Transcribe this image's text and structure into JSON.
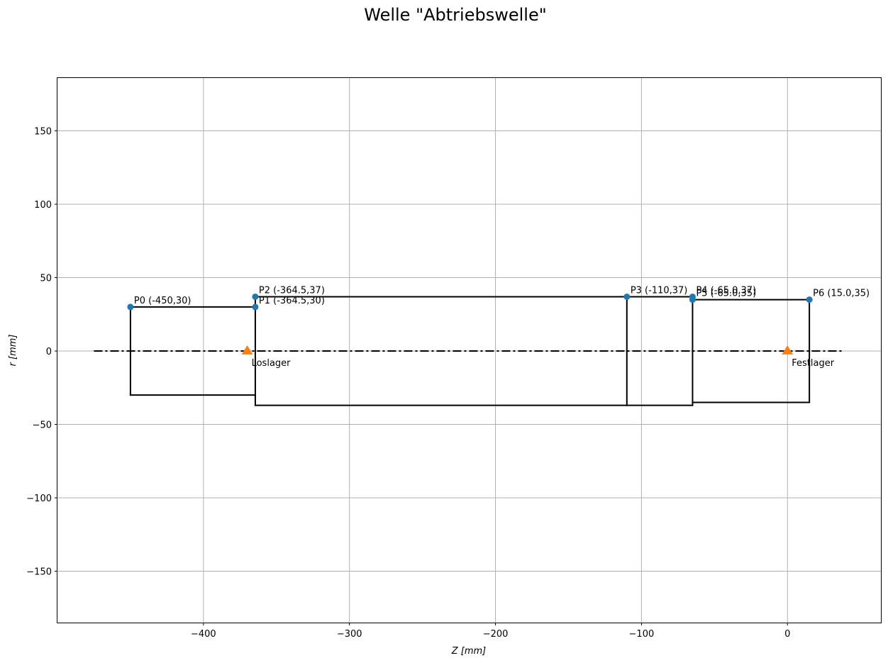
{
  "chart_data": {
    "type": "line",
    "title": "Welle \"Abtriebswelle\"",
    "xlabel": "Z [mm]",
    "ylabel": "r [mm]",
    "xlim": [
      -500,
      64
    ],
    "ylim": [
      -185,
      186
    ],
    "x_ticks": [
      -400,
      -300,
      -200,
      -100,
      0
    ],
    "y_ticks": [
      -150,
      -100,
      -50,
      0,
      50,
      100,
      150
    ],
    "x_tick_labels": [
      "−400",
      "−300",
      "−200",
      "−100",
      "0"
    ],
    "y_tick_labels": [
      "−150",
      "−100",
      "−50",
      "0",
      "50",
      "100",
      "150"
    ],
    "grid": true,
    "colors": {
      "outline": "#000000",
      "points": "#1f77b4",
      "bearings": "#ff7f0e",
      "grid": "#b0b0b0"
    },
    "centerline": {
      "x": [
        -475,
        38
      ],
      "y": 0,
      "style": "dash-dot"
    },
    "outline_segments": [
      [
        [
          -450,
          30
        ],
        [
          -450,
          -30
        ]
      ],
      [
        [
          -450,
          30
        ],
        [
          -364.5,
          30
        ]
      ],
      [
        [
          -450,
          -30
        ],
        [
          -364.5,
          -30
        ]
      ],
      [
        [
          -364.5,
          37
        ],
        [
          -364.5,
          -37
        ]
      ],
      [
        [
          -364.5,
          37
        ],
        [
          -110,
          37
        ]
      ],
      [
        [
          -364.5,
          -37
        ],
        [
          -110,
          -37
        ]
      ],
      [
        [
          -110,
          37
        ],
        [
          -110,
          -37
        ]
      ],
      [
        [
          -110,
          37
        ],
        [
          -65,
          37
        ]
      ],
      [
        [
          -110,
          -37
        ],
        [
          -65,
          -37
        ]
      ],
      [
        [
          -65,
          37
        ],
        [
          -65,
          -37
        ]
      ],
      [
        [
          -65,
          35
        ],
        [
          15,
          35
        ]
      ],
      [
        [
          -65,
          -35
        ],
        [
          15,
          -35
        ]
      ],
      [
        [
          15,
          35
        ],
        [
          15,
          -35
        ]
      ]
    ],
    "points": [
      {
        "x": -450,
        "y": 30,
        "label": "P0 (-450,30)"
      },
      {
        "x": -364.5,
        "y": 30,
        "label": "P1 (-364.5,30)"
      },
      {
        "x": -364.5,
        "y": 37,
        "label": "P2 (-364.5,37)"
      },
      {
        "x": -110,
        "y": 37,
        "label": "P3 (-110,37)"
      },
      {
        "x": -65,
        "y": 37,
        "label": "P4 (-65.0,37)"
      },
      {
        "x": -65,
        "y": 35,
        "label": "P5 (-65.0,35)"
      },
      {
        "x": 15,
        "y": 35,
        "label": "P6 (15.0,35)"
      }
    ],
    "bearings": [
      {
        "x": -370,
        "y": 0,
        "label": "Loslager"
      },
      {
        "x": 0,
        "y": 0,
        "label": "Festlager"
      }
    ]
  }
}
